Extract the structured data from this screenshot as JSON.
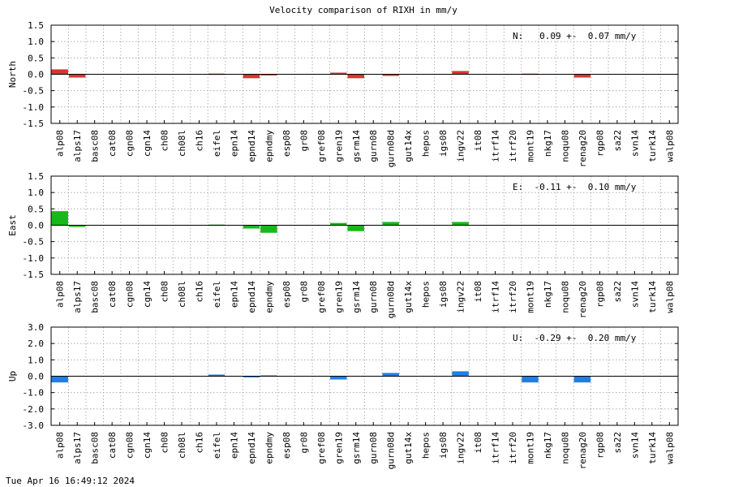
{
  "title": "Velocity comparison of RIXH in mm/y",
  "footer": "Tue Apr 16 16:49:12 2024",
  "colors": {
    "north": "#d93434",
    "east": "#18b818",
    "up": "#1e7fe6"
  },
  "chart_data": [
    {
      "type": "bar",
      "ylabel": "North",
      "ylim": [
        -1.5,
        1.5
      ],
      "yticks": [
        "1.5",
        "1.0",
        "0.5",
        "0.0",
        "-0.5",
        "-1.0",
        "-1.5"
      ],
      "annotation": "N:   0.09 +-  0.07 mm/y",
      "grid": true,
      "categories": [
        "alp08",
        "alps17",
        "basc08",
        "cat08",
        "cgn08",
        "cgn14",
        "ch08",
        "ch08l",
        "ch16",
        "eifel",
        "epn14",
        "epnd14",
        "epndmy",
        "esp08",
        "gr08",
        "gref08",
        "gren19",
        "gsrm14",
        "gurn08",
        "gurn08d",
        "gut14x",
        "hepos",
        "igs08",
        "ingv22",
        "it08",
        "itrf14",
        "itrf20",
        "mont19",
        "nkg17",
        "noqu08",
        "renag20",
        "rgp08",
        "sa22",
        "svn14",
        "turk14",
        "walp08"
      ],
      "values": [
        0.15,
        -0.1,
        0,
        0,
        0,
        0,
        0,
        0,
        0,
        0.02,
        0,
        -0.12,
        -0.02,
        0,
        0,
        0,
        0.05,
        -0.12,
        0,
        -0.05,
        0,
        0,
        0,
        0.1,
        0,
        0,
        0,
        0.02,
        0,
        0,
        -0.1,
        0,
        0,
        0,
        0,
        0
      ]
    },
    {
      "type": "bar",
      "ylabel": "East",
      "ylim": [
        -1.5,
        1.5
      ],
      "yticks": [
        "1.5",
        "1.0",
        "0.5",
        "0.0",
        "-0.5",
        "-1.0",
        "-1.5"
      ],
      "annotation": "E:  -0.11 +-  0.10 mm/y",
      "grid": true,
      "categories": [
        "alp08",
        "alps17",
        "basc08",
        "cat08",
        "cgn08",
        "cgn14",
        "ch08",
        "ch08l",
        "ch16",
        "eifel",
        "epn14",
        "epnd14",
        "epndmy",
        "esp08",
        "gr08",
        "gref08",
        "gren19",
        "gsrm14",
        "gurn08",
        "gurn08d",
        "gut14x",
        "hepos",
        "igs08",
        "ingv22",
        "it08",
        "itrf14",
        "itrf20",
        "mont19",
        "nkg17",
        "noqu08",
        "renag20",
        "rgp08",
        "sa22",
        "svn14",
        "turk14",
        "walp08"
      ],
      "values": [
        0.43,
        -0.05,
        0,
        0,
        0,
        0,
        0,
        0,
        0,
        0.02,
        0,
        -0.1,
        -0.23,
        0,
        0,
        0,
        0.07,
        -0.18,
        0,
        0.1,
        0,
        0,
        0,
        0.1,
        0,
        0,
        0,
        0,
        0,
        0,
        0,
        0,
        0,
        0,
        0,
        0
      ]
    },
    {
      "type": "bar",
      "ylabel": "Up",
      "ylim": [
        -3.0,
        3.0
      ],
      "yticks": [
        "3.0",
        "2.0",
        "1.0",
        "0.0",
        "-1.0",
        "-2.0",
        "-3.0"
      ],
      "annotation": "U:  -0.29 +-  0.20 mm/y",
      "grid": true,
      "categories": [
        "alp08",
        "alps17",
        "basc08",
        "cat08",
        "cgn08",
        "cgn14",
        "ch08",
        "ch08l",
        "ch16",
        "eifel",
        "epn14",
        "epnd14",
        "epndmy",
        "esp08",
        "gr08",
        "gref08",
        "gren19",
        "gsrm14",
        "gurn08",
        "gurn08d",
        "gut14x",
        "hepos",
        "igs08",
        "ingv22",
        "it08",
        "itrf14",
        "itrf20",
        "mont19",
        "nkg17",
        "noqu08",
        "renag20",
        "rgp08",
        "sa22",
        "svn14",
        "turk14",
        "walp08"
      ],
      "values": [
        -0.38,
        0,
        0,
        0,
        0,
        0,
        0,
        0,
        0,
        0.1,
        0,
        -0.05,
        0.05,
        0,
        0,
        0,
        -0.2,
        0,
        0,
        0.2,
        0,
        0,
        0,
        0.3,
        0,
        0,
        0,
        -0.38,
        0,
        0,
        -0.38,
        0,
        0,
        0,
        0,
        0
      ]
    }
  ]
}
